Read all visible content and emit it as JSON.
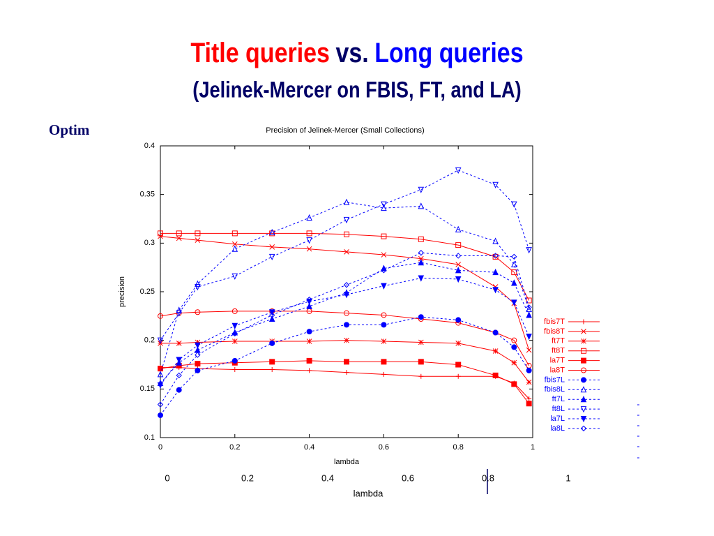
{
  "slide": {
    "title_parts": [
      {
        "text": "Title queries",
        "color": "#ff0000"
      },
      {
        "text": "vs.",
        "color": "#000066"
      },
      {
        "text": "Long queries",
        "color": "#0000ff"
      }
    ],
    "subtitle": "(Jelinek-Mercer on FBIS, FT, and LA)",
    "side_text": "Optim",
    "background_axis": {
      "ticks": [
        0,
        0.2,
        0.4,
        0.6,
        0.8,
        1
      ],
      "label": "lambda"
    }
  },
  "chart_data": {
    "type": "line",
    "title": "Precision of Jelinek-Mercer (Small Collections)",
    "x_label": "lambda",
    "y_label": "precision",
    "x": [
      0,
      0.05,
      0.1,
      0.2,
      0.3,
      0.4,
      0.5,
      0.6,
      0.7,
      0.8,
      0.9,
      0.95,
      0.99
    ],
    "xlim": [
      0,
      1
    ],
    "xticks": [
      0,
      0.2,
      0.4,
      0.6,
      0.8,
      1
    ],
    "ylim": [
      0.1,
      0.4
    ],
    "yticks": [
      0.1,
      0.15,
      0.2,
      0.25,
      0.3,
      0.35,
      0.4
    ],
    "grid": false,
    "legend": "right",
    "series": [
      {
        "name": "fbis7T",
        "color": "#ff0000",
        "marker": "plus",
        "dash": false,
        "values": [
          0.172,
          0.172,
          0.171,
          0.17,
          0.17,
          0.169,
          0.167,
          0.165,
          0.163,
          0.163,
          0.163,
          0.156,
          0.14
        ]
      },
      {
        "name": "fbis8T",
        "color": "#ff0000",
        "marker": "cross",
        "dash": false,
        "values": [
          0.307,
          0.305,
          0.303,
          0.299,
          0.296,
          0.294,
          0.291,
          0.288,
          0.284,
          0.278,
          0.255,
          0.238,
          0.19
        ]
      },
      {
        "name": "ft7T",
        "color": "#ff0000",
        "marker": "star",
        "dash": false,
        "values": [
          0.197,
          0.197,
          0.198,
          0.199,
          0.199,
          0.199,
          0.2,
          0.199,
          0.198,
          0.197,
          0.189,
          0.177,
          0.157
        ]
      },
      {
        "name": "ft8T",
        "color": "#ff0000",
        "marker": "square",
        "dash": false,
        "values": [
          0.31,
          0.31,
          0.31,
          0.31,
          0.31,
          0.31,
          0.309,
          0.307,
          0.304,
          0.298,
          0.286,
          0.27,
          0.241
        ]
      },
      {
        "name": "la7T",
        "color": "#ff0000",
        "marker": "square-filled",
        "dash": false,
        "values": [
          0.171,
          0.174,
          0.176,
          0.177,
          0.178,
          0.179,
          0.178,
          0.178,
          0.178,
          0.175,
          0.164,
          0.155,
          0.135
        ]
      },
      {
        "name": "la8T",
        "color": "#ff0000",
        "marker": "circle",
        "dash": false,
        "values": [
          0.225,
          0.228,
          0.229,
          0.23,
          0.23,
          0.23,
          0.228,
          0.226,
          0.222,
          0.218,
          0.208,
          0.2,
          0.174
        ]
      },
      {
        "name": "fbis7L",
        "color": "#0000ff",
        "marker": "circle-filled",
        "dash": true,
        "values": [
          0.123,
          0.149,
          0.169,
          0.179,
          0.197,
          0.209,
          0.216,
          0.216,
          0.224,
          0.221,
          0.208,
          0.193,
          0.169
        ]
      },
      {
        "name": "fbis8L",
        "color": "#0000ff",
        "marker": "triangle",
        "dash": true,
        "values": [
          0.165,
          0.231,
          0.258,
          0.294,
          0.311,
          0.326,
          0.342,
          0.336,
          0.338,
          0.314,
          0.302,
          0.278,
          0.232
        ]
      },
      {
        "name": "ft7L",
        "color": "#0000ff",
        "marker": "triangle-filled",
        "dash": true,
        "values": [
          0.156,
          0.177,
          0.19,
          0.208,
          0.222,
          0.235,
          0.249,
          0.274,
          0.28,
          0.272,
          0.27,
          0.259,
          0.226
        ]
      },
      {
        "name": "ft8L",
        "color": "#0000ff",
        "marker": "triangle-down",
        "dash": true,
        "values": [
          0.2,
          0.228,
          0.255,
          0.266,
          0.286,
          0.303,
          0.324,
          0.34,
          0.355,
          0.375,
          0.36,
          0.34,
          0.293
        ]
      },
      {
        "name": "la7L",
        "color": "#0000ff",
        "marker": "triangle-down-filled",
        "dash": true,
        "values": [
          0.154,
          0.18,
          0.195,
          0.215,
          0.229,
          0.24,
          0.247,
          0.256,
          0.264,
          0.263,
          0.252,
          0.239,
          0.204
        ]
      },
      {
        "name": "la8L",
        "color": "#0000ff",
        "marker": "diamond",
        "dash": true,
        "values": [
          0.134,
          0.164,
          0.185,
          0.207,
          0.226,
          0.242,
          0.257,
          0.272,
          0.29,
          0.287,
          0.287,
          0.286,
          0.234
        ]
      }
    ]
  }
}
